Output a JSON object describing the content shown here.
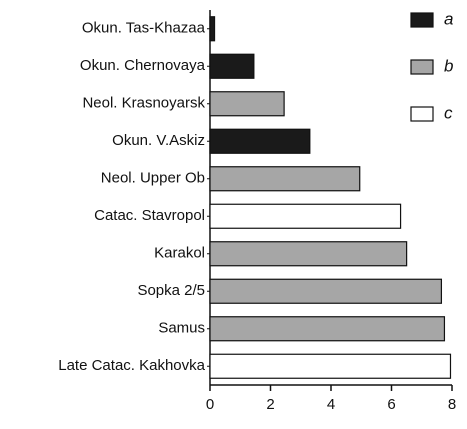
{
  "chart_data": {
    "type": "bar",
    "orientation": "horizontal",
    "categories": [
      "Okun. Tas-Khazaa",
      "Okun. Chernovaya",
      "Neol. Krasnoyarsk",
      "Okun. V.Askiz",
      "Neol. Upper Ob",
      "Catac. Stavropol",
      "Karakol",
      "Sopka 2/5",
      "Samus",
      "Late Catac. Kakhovka"
    ],
    "series": [
      {
        "name": "a",
        "color": "#1a1a1a",
        "values": [
          0.15,
          1.45,
          null,
          3.3,
          null,
          null,
          null,
          null,
          null,
          null
        ]
      },
      {
        "name": "b",
        "color": "#a6a6a6",
        "values": [
          null,
          null,
          2.45,
          null,
          4.95,
          null,
          6.5,
          7.65,
          7.75,
          null
        ]
      },
      {
        "name": "c",
        "color": "#ffffff",
        "values": [
          null,
          null,
          null,
          null,
          null,
          6.3,
          null,
          null,
          null,
          7.95
        ]
      }
    ],
    "xlim": [
      0,
      8
    ],
    "xticks": [
      0,
      2,
      4,
      6,
      8
    ],
    "legend": "upper right",
    "grid": false
  }
}
